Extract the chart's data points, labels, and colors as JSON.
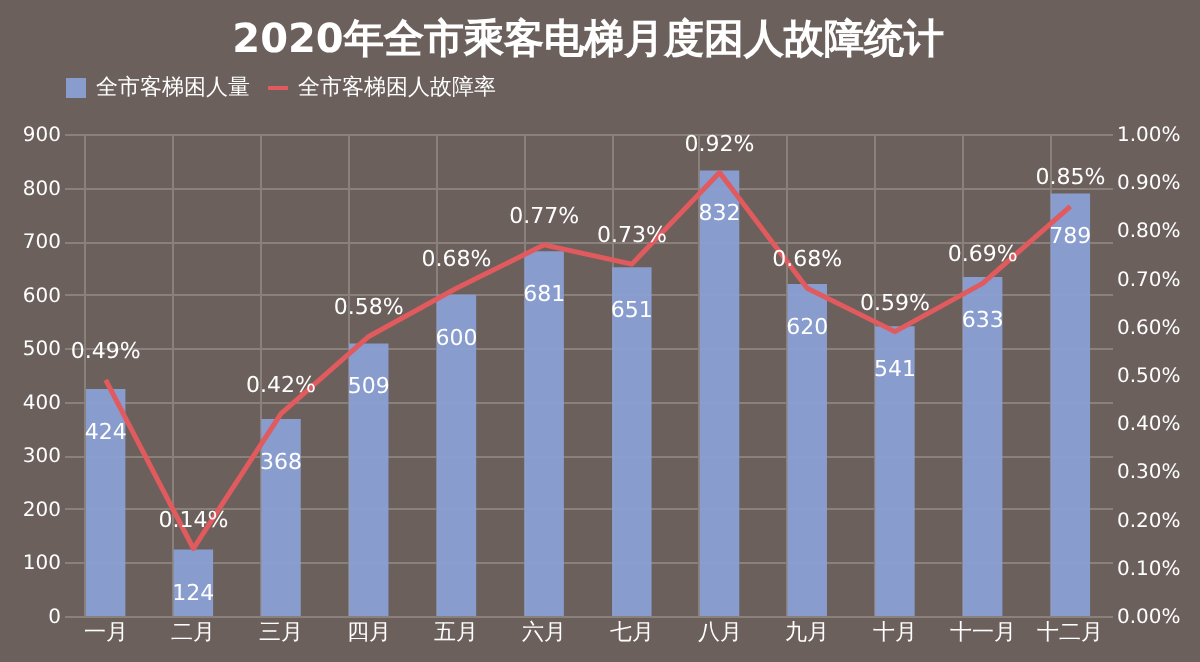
{
  "chart_data": {
    "type": "bar",
    "title": "2020年全市乘客电梯月度困人故障统计",
    "categories": [
      "一月",
      "二月",
      "三月",
      "四月",
      "五月",
      "六月",
      "七月",
      "八月",
      "九月",
      "十月",
      "十一月",
      "十二月"
    ],
    "series": [
      {
        "name": "全市客梯困人量",
        "color": "#8a9fd4",
        "values": [
          424,
          124,
          368,
          509,
          600,
          681,
          651,
          832,
          620,
          541,
          633,
          789
        ]
      },
      {
        "name": "全市客梯困人故障率",
        "type": "line",
        "axis": "y2",
        "color": "#e05a5e",
        "values": [
          0.49,
          0.14,
          0.42,
          0.58,
          0.68,
          0.77,
          0.73,
          0.92,
          0.68,
          0.59,
          0.69,
          0.85
        ],
        "value_labels": [
          "0.49%",
          "0.14%",
          "0.42%",
          "0.58%",
          "0.68%",
          "0.77%",
          "0.73%",
          "0.92%",
          "0.68%",
          "0.59%",
          "0.69%",
          "0.85%"
        ]
      }
    ],
    "ylim": [
      0,
      900
    ],
    "yticks": [
      0,
      100,
      200,
      300,
      400,
      500,
      600,
      700,
      800,
      900
    ],
    "y2lim": [
      0,
      1
    ],
    "y2ticks": [
      {
        "value": 0,
        "label": "0.00%"
      },
      {
        "value": 0.1,
        "label": "0.10%"
      },
      {
        "value": 0.2,
        "label": "0.20%"
      },
      {
        "value": 0.3,
        "label": "0.30%"
      },
      {
        "value": 0.4,
        "label": "0.40%"
      },
      {
        "value": 0.5,
        "label": "0.50%"
      },
      {
        "value": 0.6,
        "label": "0.60%"
      },
      {
        "value": 0.7,
        "label": "0.70%"
      },
      {
        "value": 0.8,
        "label": "0.80%"
      },
      {
        "value": 0.9,
        "label": "0.90%"
      },
      {
        "value": 1,
        "label": "1.00%"
      }
    ],
    "data_labels": true,
    "grid": true,
    "legend": "top"
  }
}
